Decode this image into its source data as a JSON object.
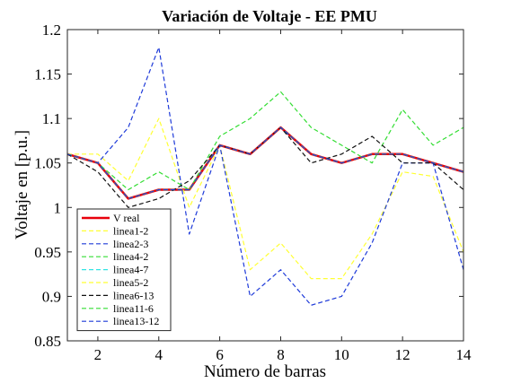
{
  "chart_data": {
    "type": "line",
    "title": "Variación de Voltaje - EE PMU",
    "xlabel": "Número de barras",
    "ylabel": "Voltaje en [p.u.]",
    "xlim": [
      1,
      14
    ],
    "ylim": [
      0.85,
      1.2
    ],
    "xticks": [
      2,
      4,
      6,
      8,
      10,
      12,
      14
    ],
    "yticks": [
      0.85,
      0.9,
      0.95,
      1,
      1.05,
      1.1,
      1.15,
      1.2
    ],
    "ytick_labels": [
      "0.85",
      "0.9",
      "0.95",
      "1",
      "1.05",
      "1.1",
      "1.15",
      "1.2"
    ],
    "x": [
      1,
      2,
      3,
      4,
      5,
      6,
      7,
      8,
      9,
      10,
      11,
      12,
      13,
      14
    ],
    "grid": false,
    "legend_position": "bottom-left",
    "series": [
      {
        "name": "V real",
        "color": "#e8000b",
        "dash": "solid",
        "values": [
          1.06,
          1.05,
          1.01,
          1.02,
          1.02,
          1.07,
          1.06,
          1.09,
          1.06,
          1.05,
          1.06,
          1.06,
          1.05,
          1.04
        ]
      },
      {
        "name": "linea1-2",
        "color": "#ffff33",
        "dash": "dashed",
        "values": [
          1.06,
          1.06,
          1.03,
          1.1,
          1.0,
          1.07,
          0.93,
          0.96,
          0.92,
          0.92,
          0.97,
          1.04,
          1.035,
          0.95
        ]
      },
      {
        "name": "linea2-3",
        "color": "#1f3bd9",
        "dash": "dashed",
        "values": [
          1.06,
          1.05,
          1.09,
          1.18,
          0.97,
          1.07,
          0.9,
          0.93,
          0.89,
          0.9,
          0.96,
          1.05,
          1.05,
          0.93
        ]
      },
      {
        "name": "linea4-2",
        "color": "#33dd33",
        "dash": "dashed",
        "values": [
          1.06,
          1.05,
          1.02,
          1.04,
          1.02,
          1.08,
          1.1,
          1.13,
          1.09,
          1.07,
          1.05,
          1.11,
          1.07,
          1.09
        ]
      },
      {
        "name": "linea4-7",
        "color": "#33e5e5",
        "dash": "dashed",
        "values": [
          1.06,
          1.05,
          1.01,
          1.02,
          1.02,
          1.07,
          1.06,
          1.09,
          1.06,
          1.05,
          1.06,
          1.06,
          1.05,
          1.04
        ]
      },
      {
        "name": "linea5-2",
        "color": "#ffff33",
        "dash": "dashed",
        "values": [
          1.06,
          1.05,
          1.01,
          1.02,
          1.02,
          1.07,
          1.06,
          1.09,
          1.06,
          1.05,
          1.06,
          1.06,
          1.05,
          1.04
        ]
      },
      {
        "name": "linea6-13",
        "color": "#111111",
        "dash": "dashed",
        "values": [
          1.06,
          1.04,
          1.0,
          1.01,
          1.03,
          1.07,
          1.06,
          1.09,
          1.05,
          1.06,
          1.08,
          1.05,
          1.05,
          1.02
        ]
      },
      {
        "name": "linea11-6",
        "color": "#33dd33",
        "dash": "dashed",
        "values": [
          1.06,
          1.05,
          1.01,
          1.02,
          1.02,
          1.07,
          1.06,
          1.09,
          1.06,
          1.05,
          1.06,
          1.06,
          1.05,
          1.04
        ]
      },
      {
        "name": "linea13-12",
        "color": "#1f3bd9",
        "dash": "dashed",
        "values": [
          1.06,
          1.05,
          1.01,
          1.02,
          1.02,
          1.07,
          1.06,
          1.09,
          1.06,
          1.05,
          1.06,
          1.06,
          1.05,
          1.04
        ]
      }
    ]
  }
}
